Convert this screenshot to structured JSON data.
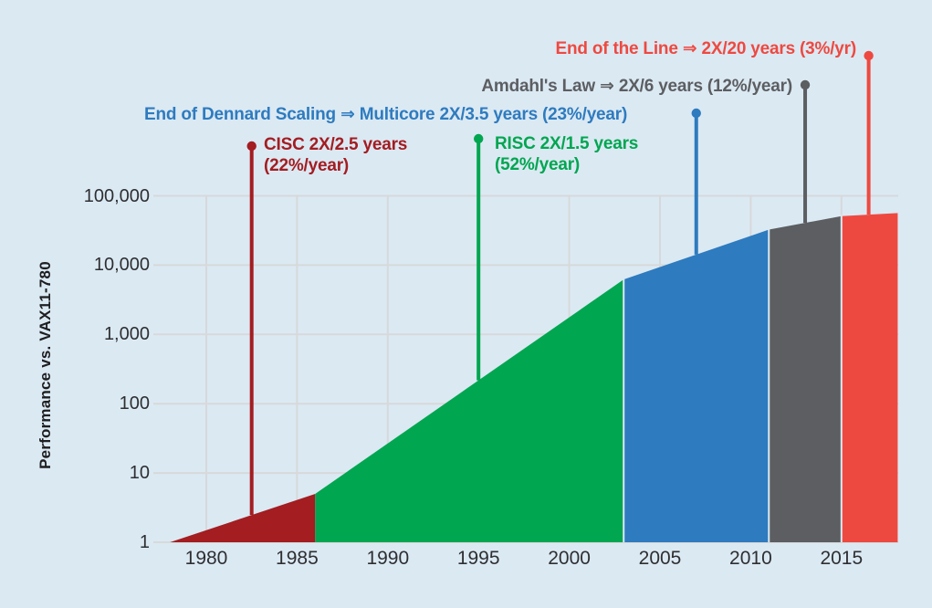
{
  "palette": {
    "background": "#dbe9f3",
    "grid": "#d7d9da",
    "axis_text": "#2e2f31",
    "axis_title": "#1e1e20",
    "cisc": "#a31d21",
    "risc": "#00a650",
    "multicore": "#2e7bbf",
    "amdahl": "#5c5e61",
    "endline": "#ee4940"
  },
  "chart_data": {
    "type": "area",
    "y_axis_label": "Performance vs. VAX11-780",
    "y_scale": "log",
    "grid": "on",
    "xlim_years": [
      1977.7,
      2018.1
    ],
    "ylim": [
      1,
      100000
    ],
    "x_tick_labels": [
      "1980",
      "1985",
      "1990",
      "1995",
      "2000",
      "2005",
      "2010",
      "2015"
    ],
    "y_tick_labels": [
      "1",
      "10",
      "100",
      "1,000",
      "10,000",
      "100,000"
    ],
    "y_tick_values": [
      1,
      10,
      100,
      1000,
      10000,
      100000
    ],
    "segments": [
      {
        "id": "cisc",
        "label": "CISC",
        "growth": "2X/2.5 years (22%/year)",
        "color_key": "cisc",
        "start_year": 1978,
        "start_perf": 1,
        "end_year": 1986,
        "end_perf": 5
      },
      {
        "id": "risc",
        "label": "RISC",
        "growth": "2X/1.5 years (52%/year)",
        "color_key": "risc",
        "start_year": 1986,
        "start_perf": 5,
        "end_year": 2003,
        "end_perf": 6200
      },
      {
        "id": "multicore",
        "label": "Multicore (End of Dennard Scaling)",
        "growth": "2X/3.5 years (23%/year)",
        "color_key": "multicore",
        "start_year": 2003,
        "start_perf": 6200,
        "end_year": 2011,
        "end_perf": 32500
      },
      {
        "id": "amdahl",
        "label": "Amdahl's Law",
        "growth": "2X/6 years (12%/year)",
        "color_key": "amdahl",
        "start_year": 2011,
        "start_perf": 32500,
        "end_year": 2015,
        "end_perf": 51000
      },
      {
        "id": "endline",
        "label": "End of the Line",
        "growth": "2X/20 years (3%/yr)",
        "color_key": "endline",
        "start_year": 2015,
        "start_perf": 51000,
        "end_year": 2018.1,
        "end_perf": 56500
      }
    ],
    "annotations": [
      {
        "id": "endline",
        "text": "End of the Line ⇒ 2X/20 years (3%/yr)",
        "color_key": "endline",
        "pin_year": 2016.5
      },
      {
        "id": "amdahl",
        "text": "Amdahl's Law ⇒ 2X/6 years (12%/year)",
        "color_key": "amdahl",
        "pin_year": 2013
      },
      {
        "id": "dennard",
        "text": "End of Dennard Scaling ⇒ Multicore 2X/3.5 years (23%/year)",
        "color_key": "multicore",
        "pin_year": 2007
      },
      {
        "id": "cisc",
        "line1": "CISC 2X/2.5 years",
        "line2": "(22%/year)",
        "color_key": "cisc",
        "pin_year": 1982.5
      },
      {
        "id": "risc",
        "line1": "RISC 2X/1.5 years",
        "line2": "(52%/year)",
        "color_key": "risc",
        "pin_year": 1995
      }
    ]
  }
}
